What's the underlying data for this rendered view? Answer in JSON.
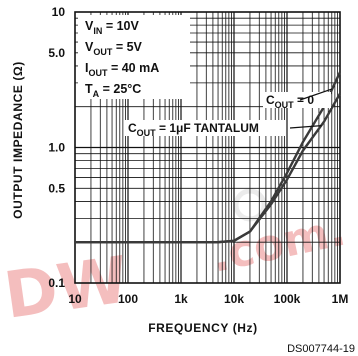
{
  "chart_data": {
    "type": "line",
    "xscale": "log",
    "yscale": "log",
    "xlim": [
      10,
      1000000
    ],
    "ylim": [
      0.1,
      10
    ],
    "grid": true,
    "xlabel": "FREQUENCY (Hz)",
    "ylabel": "OUTPUT IMPEDANCE (Ω)",
    "x_ticks": [
      {
        "value": 10,
        "label": "10"
      },
      {
        "value": 100,
        "label": "100"
      },
      {
        "value": 1000,
        "label": "1k"
      },
      {
        "value": 10000,
        "label": "10k"
      },
      {
        "value": 100000,
        "label": "100k"
      },
      {
        "value": 1000000,
        "label": "1M"
      }
    ],
    "y_ticks": [
      {
        "value": 10,
        "label": "10"
      },
      {
        "value": 5,
        "label": "5.0"
      },
      {
        "value": 1,
        "label": "1.0"
      },
      {
        "value": 0.5,
        "label": "0.5"
      },
      {
        "value": 0.1,
        "label": "0.1"
      }
    ],
    "conditions": [
      {
        "name": "V",
        "sub": "IN",
        "rest": " = 10V"
      },
      {
        "name": "V",
        "sub": "OUT",
        "rest": " = 5V"
      },
      {
        "name": "I",
        "sub": "OUT",
        "rest": " = 40 mA"
      },
      {
        "name": "T",
        "sub": "A",
        "rest": " = 25°C"
      }
    ],
    "series": [
      {
        "name": "C_OUT = 0",
        "label_main": "C",
        "label_sub": "OUT",
        "label_rest": " = 0",
        "color": "#3a3a3a",
        "points": [
          [
            10,
            0.2
          ],
          [
            100,
            0.2
          ],
          [
            1000,
            0.2
          ],
          [
            5000,
            0.2
          ],
          [
            10000,
            0.205
          ],
          [
            20000,
            0.24
          ],
          [
            50000,
            0.4
          ],
          [
            100000,
            0.65
          ],
          [
            200000,
            1.1
          ],
          [
            500000,
            2.0
          ],
          [
            1000000,
            3.6
          ]
        ]
      },
      {
        "name": "C_OUT = 1μF TANTALUM",
        "label_main": "C",
        "label_sub": "OUT",
        "label_rest": " = 1μF TANTALUM",
        "color": "#3a3a3a",
        "points": [
          [
            10,
            0.2
          ],
          [
            100,
            0.2
          ],
          [
            1000,
            0.2
          ],
          [
            5000,
            0.2
          ],
          [
            10000,
            0.205
          ],
          [
            20000,
            0.24
          ],
          [
            50000,
            0.38
          ],
          [
            100000,
            0.58
          ],
          [
            200000,
            0.95
          ],
          [
            500000,
            1.55
          ],
          [
            1000000,
            2.5
          ]
        ]
      }
    ]
  },
  "footer_code": "DS007744-19",
  "watermark_text": ".com."
}
